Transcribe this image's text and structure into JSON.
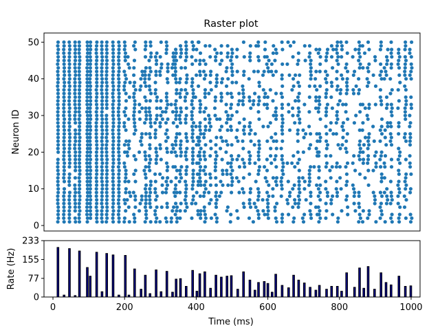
{
  "chart_data": [
    {
      "type": "scatter",
      "title": "Raster plot",
      "xlabel": "",
      "ylabel": "Neuron ID",
      "xlim": [
        -25,
        1025
      ],
      "ylim": [
        -1.5,
        52.5
      ],
      "yticks": [
        0,
        10,
        20,
        30,
        40,
        50
      ],
      "xticks_visible": false,
      "grid": false,
      "marker_color": "#1f77b4",
      "neurons": [
        1,
        50
      ],
      "synchronous_spike_times_ms": [
        14,
        31,
        46,
        62,
        74,
        96,
        104,
        122,
        137,
        150,
        168,
        184,
        202,
        228,
        258,
        271,
        288,
        318,
        344,
        356,
        372,
        390,
        410,
        424,
        455,
        486,
        498,
        532,
        550,
        574,
        600,
        622,
        640,
        686,
        718,
        744,
        764,
        794,
        820,
        856,
        880,
        916,
        944,
        966,
        984,
        999
      ],
      "scattered_spike_times_ms": [
        212,
        246,
        302,
        334,
        402,
        440,
        470,
        516,
        564,
        590,
        612,
        658,
        672,
        702,
        734,
        778,
        806,
        842,
        868,
        898,
        930
      ]
    },
    {
      "type": "bar",
      "title": "",
      "xlabel": "Time (ms)",
      "ylabel": "Rate (Hz)",
      "xlim": [
        -25,
        1025
      ],
      "ylim": [
        0,
        233
      ],
      "xticks": [
        0,
        200,
        400,
        600,
        800,
        1000
      ],
      "yticks": [
        0,
        77,
        155,
        233
      ],
      "bar_color": "#00008b",
      "bar_edge_color": "#000000",
      "bin_width_ms": 5,
      "bins": [
        {
          "x": 14,
          "value": 205
        },
        {
          "x": 31,
          "value": 8
        },
        {
          "x": 46,
          "value": 200
        },
        {
          "x": 62,
          "value": 6
        },
        {
          "x": 74,
          "value": 190
        },
        {
          "x": 96,
          "value": 122
        },
        {
          "x": 104,
          "value": 86
        },
        {
          "x": 122,
          "value": 185
        },
        {
          "x": 137,
          "value": 22
        },
        {
          "x": 150,
          "value": 180
        },
        {
          "x": 168,
          "value": 174
        },
        {
          "x": 184,
          "value": 8
        },
        {
          "x": 202,
          "value": 172
        },
        {
          "x": 212,
          "value": 8
        },
        {
          "x": 228,
          "value": 116
        },
        {
          "x": 246,
          "value": 32
        },
        {
          "x": 258,
          "value": 90
        },
        {
          "x": 271,
          "value": 14
        },
        {
          "x": 288,
          "value": 112
        },
        {
          "x": 302,
          "value": 22
        },
        {
          "x": 318,
          "value": 106
        },
        {
          "x": 334,
          "value": 20
        },
        {
          "x": 344,
          "value": 74
        },
        {
          "x": 356,
          "value": 76
        },
        {
          "x": 372,
          "value": 44
        },
        {
          "x": 390,
          "value": 110
        },
        {
          "x": 402,
          "value": 24
        },
        {
          "x": 410,
          "value": 96
        },
        {
          "x": 424,
          "value": 104
        },
        {
          "x": 440,
          "value": 36
        },
        {
          "x": 455,
          "value": 90
        },
        {
          "x": 470,
          "value": 82
        },
        {
          "x": 486,
          "value": 86
        },
        {
          "x": 498,
          "value": 88
        },
        {
          "x": 516,
          "value": 32
        },
        {
          "x": 532,
          "value": 104
        },
        {
          "x": 550,
          "value": 70
        },
        {
          "x": 564,
          "value": 28
        },
        {
          "x": 574,
          "value": 60
        },
        {
          "x": 590,
          "value": 64
        },
        {
          "x": 600,
          "value": 56
        },
        {
          "x": 612,
          "value": 20
        },
        {
          "x": 622,
          "value": 94
        },
        {
          "x": 640,
          "value": 48
        },
        {
          "x": 658,
          "value": 38
        },
        {
          "x": 672,
          "value": 90
        },
        {
          "x": 686,
          "value": 70
        },
        {
          "x": 702,
          "value": 58
        },
        {
          "x": 718,
          "value": 40
        },
        {
          "x": 734,
          "value": 28
        },
        {
          "x": 744,
          "value": 48
        },
        {
          "x": 764,
          "value": 32
        },
        {
          "x": 778,
          "value": 44
        },
        {
          "x": 794,
          "value": 44
        },
        {
          "x": 806,
          "value": 24
        },
        {
          "x": 820,
          "value": 100
        },
        {
          "x": 842,
          "value": 40
        },
        {
          "x": 856,
          "value": 120
        },
        {
          "x": 868,
          "value": 36
        },
        {
          "x": 880,
          "value": 126
        },
        {
          "x": 898,
          "value": 32
        },
        {
          "x": 916,
          "value": 100
        },
        {
          "x": 930,
          "value": 60
        },
        {
          "x": 944,
          "value": 50
        },
        {
          "x": 966,
          "value": 86
        },
        {
          "x": 984,
          "value": 44
        },
        {
          "x": 999,
          "value": 46
        }
      ]
    }
  ]
}
